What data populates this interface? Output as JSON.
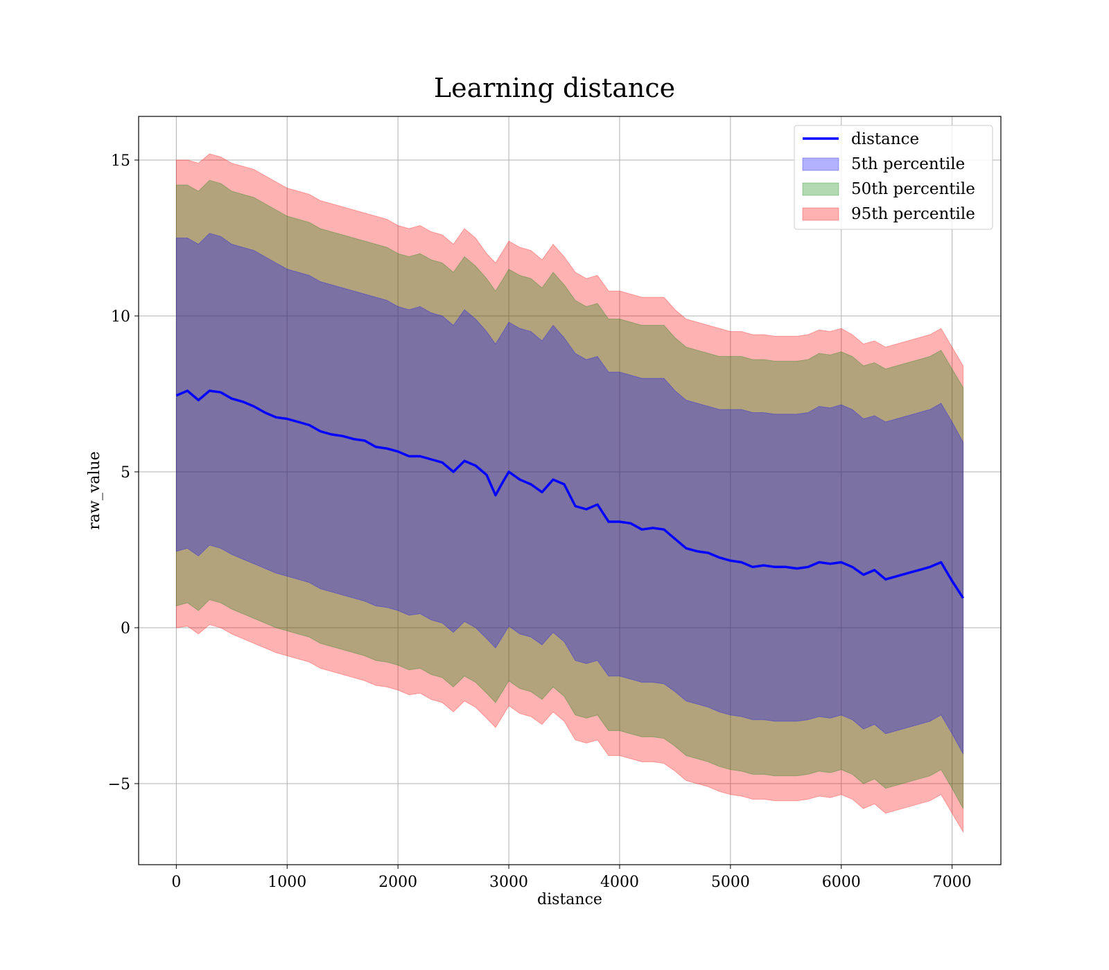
{
  "chart_data": {
    "type": "line",
    "title": "Learning distance",
    "xlabel": "distance",
    "ylabel": "raw_value",
    "xlim": [
      -340,
      7440
    ],
    "ylim": [
      -7.6,
      16.4
    ],
    "xticks": [
      0,
      1000,
      2000,
      3000,
      4000,
      5000,
      6000,
      7000
    ],
    "yticks": [
      -5,
      0,
      5,
      10,
      15
    ],
    "xtick_labels": [
      "0",
      "1000",
      "2000",
      "3000",
      "4000",
      "5000",
      "6000",
      "7000"
    ],
    "ytick_labels": [
      "−5",
      "0",
      "5",
      "10",
      "15"
    ],
    "grid": true,
    "legend_position": "top-right",
    "legend": [
      "distance",
      "5th percentile",
      "50th percentile",
      "95th percentile"
    ],
    "x": [
      0,
      100,
      200,
      300,
      400,
      500,
      600,
      700,
      800,
      900,
      1000,
      1100,
      1200,
      1300,
      1400,
      1500,
      1600,
      1700,
      1800,
      1900,
      2000,
      2100,
      2200,
      2300,
      2400,
      2500,
      2600,
      2700,
      2800,
      2880,
      2950,
      3000,
      3100,
      3200,
      3300,
      3400,
      3500,
      3600,
      3700,
      3800,
      3900,
      4000,
      4100,
      4200,
      4300,
      4400,
      4500,
      4600,
      4700,
      4800,
      4900,
      5000,
      5100,
      5200,
      5300,
      5400,
      5500,
      5600,
      5700,
      5800,
      5900,
      6000,
      6100,
      6200,
      6300,
      6400,
      6500,
      6600,
      6700,
      6800,
      6900,
      7000,
      7100
    ],
    "series": [
      {
        "name": "distance",
        "color": "#0000ff",
        "values": [
          7.45,
          7.6,
          7.3,
          7.6,
          7.55,
          7.35,
          7.25,
          7.1,
          6.9,
          6.75,
          6.7,
          6.6,
          6.5,
          6.3,
          6.2,
          6.15,
          6.05,
          6.0,
          5.8,
          5.75,
          5.65,
          5.5,
          5.5,
          5.4,
          5.3,
          5.0,
          5.35,
          5.2,
          4.9,
          4.25,
          4.7,
          5.0,
          4.75,
          4.6,
          4.35,
          4.75,
          4.6,
          3.9,
          3.8,
          3.95,
          3.4,
          3.4,
          3.35,
          3.15,
          3.2,
          3.15,
          2.85,
          2.55,
          2.45,
          2.4,
          2.25,
          2.15,
          2.1,
          1.95,
          2.0,
          1.95,
          1.95,
          1.9,
          1.95,
          2.1,
          2.05,
          2.1,
          1.95,
          1.7,
          1.85,
          1.55,
          1.65,
          1.75,
          1.85,
          1.95,
          2.1,
          1.5,
          0.95
        ]
      },
      {
        "name": "95th percentile",
        "color": "#ff0000",
        "upper": [
          15.0,
          15.0,
          14.9,
          15.2,
          15.1,
          14.9,
          14.8,
          14.7,
          14.5,
          14.3,
          14.1,
          14.0,
          13.9,
          13.7,
          13.6,
          13.5,
          13.4,
          13.3,
          13.2,
          13.1,
          12.9,
          12.8,
          12.9,
          12.7,
          12.6,
          12.3,
          12.8,
          12.5,
          12.0,
          11.7,
          12.1,
          12.4,
          12.2,
          12.1,
          11.8,
          12.3,
          11.9,
          11.4,
          11.2,
          11.3,
          10.8,
          10.8,
          10.7,
          10.6,
          10.6,
          10.6,
          10.2,
          9.9,
          9.8,
          9.7,
          9.6,
          9.5,
          9.5,
          9.4,
          9.4,
          9.35,
          9.35,
          9.35,
          9.4,
          9.55,
          9.5,
          9.6,
          9.4,
          9.1,
          9.2,
          9.0,
          9.1,
          9.2,
          9.3,
          9.4,
          9.6,
          9.0,
          8.4
        ],
        "lower": [
          0.0,
          0.05,
          -0.2,
          0.1,
          0.0,
          -0.2,
          -0.35,
          -0.5,
          -0.65,
          -0.8,
          -0.9,
          -1.0,
          -1.1,
          -1.3,
          -1.4,
          -1.5,
          -1.6,
          -1.7,
          -1.85,
          -1.9,
          -2.0,
          -2.15,
          -2.1,
          -2.3,
          -2.4,
          -2.7,
          -2.35,
          -2.55,
          -2.9,
          -3.2,
          -2.8,
          -2.5,
          -2.75,
          -2.85,
          -3.1,
          -2.7,
          -3.0,
          -3.6,
          -3.7,
          -3.6,
          -4.1,
          -4.1,
          -4.2,
          -4.3,
          -4.3,
          -4.35,
          -4.6,
          -4.9,
          -5.0,
          -5.1,
          -5.25,
          -5.35,
          -5.4,
          -5.5,
          -5.5,
          -5.55,
          -5.55,
          -5.55,
          -5.5,
          -5.4,
          -5.45,
          -5.35,
          -5.5,
          -5.8,
          -5.65,
          -5.95,
          -5.85,
          -5.75,
          -5.65,
          -5.55,
          -5.35,
          -5.95,
          -6.55
        ]
      },
      {
        "name": "50th percentile",
        "color": "#008000",
        "upper": [
          14.2,
          14.2,
          14.0,
          14.35,
          14.25,
          14.0,
          13.9,
          13.8,
          13.6,
          13.4,
          13.2,
          13.1,
          13.0,
          12.8,
          12.7,
          12.6,
          12.5,
          12.4,
          12.3,
          12.2,
          12.0,
          11.9,
          12.0,
          11.8,
          11.7,
          11.4,
          11.9,
          11.6,
          11.2,
          10.8,
          11.2,
          11.5,
          11.3,
          11.2,
          10.9,
          11.4,
          11.0,
          10.5,
          10.3,
          10.4,
          9.9,
          9.9,
          9.8,
          9.7,
          9.7,
          9.7,
          9.3,
          9.0,
          8.9,
          8.8,
          8.7,
          8.7,
          8.7,
          8.6,
          8.6,
          8.55,
          8.55,
          8.55,
          8.6,
          8.8,
          8.75,
          8.85,
          8.7,
          8.4,
          8.5,
          8.3,
          8.4,
          8.5,
          8.6,
          8.7,
          8.9,
          8.3,
          7.7
        ],
        "lower": [
          0.7,
          0.8,
          0.55,
          0.9,
          0.8,
          0.6,
          0.45,
          0.3,
          0.15,
          0.0,
          -0.1,
          -0.2,
          -0.3,
          -0.5,
          -0.6,
          -0.7,
          -0.8,
          -0.9,
          -1.05,
          -1.1,
          -1.2,
          -1.35,
          -1.3,
          -1.5,
          -1.6,
          -1.9,
          -1.55,
          -1.75,
          -2.1,
          -2.4,
          -2.0,
          -1.7,
          -1.95,
          -2.05,
          -2.3,
          -1.9,
          -2.2,
          -2.8,
          -2.9,
          -2.8,
          -3.3,
          -3.3,
          -3.4,
          -3.5,
          -3.5,
          -3.55,
          -3.8,
          -4.1,
          -4.2,
          -4.3,
          -4.45,
          -4.55,
          -4.6,
          -4.7,
          -4.7,
          -4.75,
          -4.75,
          -4.75,
          -4.7,
          -4.6,
          -4.65,
          -4.55,
          -4.7,
          -5.0,
          -4.85,
          -5.15,
          -5.05,
          -4.95,
          -4.85,
          -4.75,
          -4.55,
          -5.15,
          -5.8
        ]
      },
      {
        "name": "5th percentile",
        "color": "#0000ff",
        "upper": [
          12.5,
          12.5,
          12.3,
          12.65,
          12.55,
          12.3,
          12.2,
          12.1,
          11.9,
          11.7,
          11.5,
          11.4,
          11.3,
          11.1,
          11.0,
          10.9,
          10.8,
          10.7,
          10.6,
          10.5,
          10.3,
          10.2,
          10.3,
          10.1,
          10.0,
          9.7,
          10.2,
          9.9,
          9.5,
          9.1,
          9.5,
          9.8,
          9.6,
          9.5,
          9.2,
          9.7,
          9.3,
          8.8,
          8.6,
          8.7,
          8.2,
          8.2,
          8.1,
          8.0,
          8.0,
          8.0,
          7.6,
          7.3,
          7.2,
          7.1,
          7.0,
          7.0,
          7.0,
          6.9,
          6.9,
          6.85,
          6.85,
          6.85,
          6.9,
          7.1,
          7.05,
          7.15,
          7.0,
          6.7,
          6.8,
          6.6,
          6.7,
          6.8,
          6.9,
          7.0,
          7.2,
          6.6,
          5.95
        ],
        "lower": [
          2.45,
          2.55,
          2.3,
          2.65,
          2.55,
          2.35,
          2.2,
          2.05,
          1.9,
          1.75,
          1.65,
          1.55,
          1.45,
          1.25,
          1.15,
          1.05,
          0.95,
          0.85,
          0.7,
          0.65,
          0.55,
          0.4,
          0.45,
          0.25,
          0.15,
          -0.15,
          0.2,
          0.0,
          -0.35,
          -0.65,
          -0.25,
          0.05,
          -0.2,
          -0.3,
          -0.55,
          -0.15,
          -0.45,
          -1.05,
          -1.15,
          -1.05,
          -1.55,
          -1.55,
          -1.65,
          -1.75,
          -1.75,
          -1.8,
          -2.05,
          -2.35,
          -2.45,
          -2.55,
          -2.7,
          -2.8,
          -2.85,
          -2.95,
          -2.95,
          -3.0,
          -3.0,
          -3.0,
          -2.95,
          -2.85,
          -2.9,
          -2.8,
          -2.95,
          -3.25,
          -3.1,
          -3.4,
          -3.3,
          -3.2,
          -3.1,
          -3.0,
          -2.8,
          -3.4,
          -4.05
        ]
      }
    ]
  }
}
